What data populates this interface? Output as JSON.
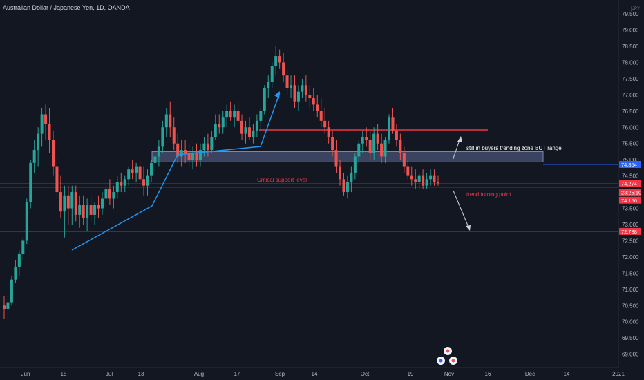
{
  "header": {
    "title": "Australian Dollar / Japanese Yen, 1D, OANDA",
    "currency": "JPY"
  },
  "colors": {
    "background": "#131722",
    "up": "#26a69a",
    "down": "#ef5350",
    "trendline": "#2196f3",
    "resistance": "#f23645",
    "zone_fill": "#5b6a96",
    "zone_price_label": "#2962ff",
    "axis_text": "#b2b5be"
  },
  "icons": [
    "tradingview-logo-icon"
  ],
  "chart_data": {
    "type": "candlestick",
    "symbol": "AUDJPY",
    "timeframe": "1D",
    "exchange": "OANDA",
    "y_axis": {
      "ylim": [
        68.8,
        79.8
      ],
      "ticks": [
        "69.000",
        "69.500",
        "70.000",
        "70.500",
        "71.000",
        "71.500",
        "72.000",
        "72.500",
        "73.000",
        "73.500",
        "74.000",
        "74.500",
        "75.000",
        "75.500",
        "76.000",
        "76.500",
        "77.000",
        "77.500",
        "78.000",
        "78.500",
        "79.000",
        "79.500"
      ]
    },
    "x_axis": {
      "ticks": [
        "Jun",
        "15",
        "Jul",
        "13",
        "Aug",
        "17",
        "Sep",
        "14",
        "Oct",
        "19",
        "Nov",
        "16",
        "Dec",
        "14",
        "2021"
      ]
    },
    "candles_ohlc": [
      [
        70.5,
        70.8,
        70.1,
        70.4
      ],
      [
        70.4,
        70.8,
        70.0,
        70.6
      ],
      [
        70.6,
        71.4,
        70.5,
        71.3
      ],
      [
        71.3,
        71.9,
        71.2,
        71.7
      ],
      [
        71.7,
        72.2,
        71.4,
        72.1
      ],
      [
        72.1,
        72.6,
        71.9,
        72.5
      ],
      [
        72.5,
        73.8,
        72.4,
        73.7
      ],
      [
        73.7,
        75.0,
        73.5,
        74.9
      ],
      [
        74.9,
        75.6,
        74.6,
        75.3
      ],
      [
        75.3,
        76.0,
        74.8,
        75.8
      ],
      [
        75.8,
        76.6,
        75.4,
        76.4
      ],
      [
        76.4,
        76.7,
        75.6,
        76.1
      ],
      [
        76.1,
        76.6,
        75.2,
        75.6
      ],
      [
        75.6,
        75.9,
        74.5,
        74.8
      ],
      [
        74.8,
        75.1,
        73.8,
        74.0
      ],
      [
        74.0,
        74.5,
        73.2,
        73.4
      ],
      [
        73.4,
        74.2,
        72.6,
        73.9
      ],
      [
        73.9,
        74.2,
        73.0,
        73.5
      ],
      [
        73.5,
        74.2,
        73.0,
        74.0
      ],
      [
        74.0,
        74.2,
        73.1,
        73.3
      ],
      [
        73.3,
        73.9,
        72.9,
        73.6
      ],
      [
        73.6,
        73.9,
        73.0,
        73.2
      ],
      [
        73.2,
        73.8,
        72.8,
        73.6
      ],
      [
        73.6,
        73.9,
        73.1,
        73.3
      ],
      [
        73.3,
        73.7,
        73.0,
        73.6
      ],
      [
        73.6,
        73.9,
        73.2,
        73.5
      ],
      [
        73.5,
        74.0,
        73.3,
        73.8
      ],
      [
        73.8,
        74.3,
        73.5,
        74.1
      ],
      [
        74.1,
        74.4,
        73.6,
        73.8
      ],
      [
        73.8,
        74.2,
        73.5,
        74.0
      ],
      [
        74.0,
        74.5,
        73.8,
        74.3
      ],
      [
        74.3,
        74.6,
        74.0,
        74.2
      ],
      [
        74.2,
        74.5,
        74.0,
        74.4
      ],
      [
        74.4,
        74.8,
        74.2,
        74.7
      ],
      [
        74.7,
        75.0,
        74.4,
        74.6
      ],
      [
        74.6,
        74.9,
        74.3,
        74.8
      ],
      [
        74.8,
        75.0,
        74.3,
        74.4
      ],
      [
        74.4,
        74.8,
        73.9,
        74.2
      ],
      [
        74.2,
        74.7,
        73.9,
        74.5
      ],
      [
        74.5,
        75.0,
        74.3,
        74.9
      ],
      [
        74.9,
        75.3,
        74.6,
        75.1
      ],
      [
        75.1,
        75.6,
        74.8,
        75.4
      ],
      [
        75.4,
        76.2,
        75.2,
        76.0
      ],
      [
        76.0,
        76.6,
        75.7,
        76.4
      ],
      [
        76.4,
        76.8,
        75.7,
        76.0
      ],
      [
        76.0,
        76.3,
        75.3,
        75.5
      ],
      [
        75.5,
        75.8,
        74.9,
        75.1
      ],
      [
        75.1,
        75.6,
        74.8,
        75.3
      ],
      [
        75.3,
        75.6,
        74.9,
        75.2
      ],
      [
        75.2,
        75.5,
        74.8,
        75.0
      ],
      [
        75.0,
        75.4,
        74.7,
        75.2
      ],
      [
        75.2,
        75.5,
        74.8,
        75.0
      ],
      [
        75.0,
        75.5,
        74.8,
        75.3
      ],
      [
        75.3,
        75.7,
        75.1,
        75.5
      ],
      [
        75.5,
        75.8,
        75.1,
        75.3
      ],
      [
        75.3,
        75.9,
        75.2,
        75.7
      ],
      [
        75.7,
        76.4,
        75.6,
        76.1
      ],
      [
        76.1,
        76.4,
        75.8,
        76.0
      ],
      [
        76.0,
        76.5,
        75.8,
        76.3
      ],
      [
        76.3,
        76.7,
        76.0,
        76.5
      ],
      [
        76.5,
        76.8,
        76.2,
        76.3
      ],
      [
        76.3,
        76.7,
        76.0,
        76.5
      ],
      [
        76.5,
        76.8,
        76.1,
        76.2
      ],
      [
        76.2,
        76.4,
        75.6,
        75.8
      ],
      [
        75.8,
        76.2,
        75.5,
        76.0
      ],
      [
        76.0,
        76.3,
        75.6,
        75.7
      ],
      [
        75.7,
        76.1,
        75.5,
        75.9
      ],
      [
        75.9,
        76.4,
        75.7,
        76.2
      ],
      [
        76.2,
        76.6,
        75.9,
        76.5
      ],
      [
        76.5,
        77.3,
        76.4,
        77.2
      ],
      [
        77.2,
        77.6,
        76.9,
        77.4
      ],
      [
        77.4,
        78.0,
        77.2,
        77.9
      ],
      [
        77.9,
        78.5,
        77.6,
        78.2
      ],
      [
        78.2,
        78.4,
        77.8,
        78.0
      ],
      [
        78.0,
        78.3,
        77.4,
        77.6
      ],
      [
        77.6,
        77.8,
        77.0,
        77.2
      ],
      [
        77.2,
        77.6,
        76.9,
        77.3
      ],
      [
        77.3,
        77.6,
        76.6,
        76.8
      ],
      [
        76.8,
        77.3,
        76.5,
        77.1
      ],
      [
        77.1,
        77.5,
        76.9,
        77.3
      ],
      [
        77.3,
        77.6,
        76.8,
        77.0
      ],
      [
        77.0,
        77.3,
        76.6,
        76.9
      ],
      [
        76.9,
        77.2,
        76.5,
        76.7
      ],
      [
        76.7,
        77.0,
        76.3,
        76.5
      ],
      [
        76.5,
        76.9,
        76.0,
        76.2
      ],
      [
        76.2,
        76.6,
        75.8,
        76.0
      ],
      [
        76.0,
        76.2,
        75.5,
        75.7
      ],
      [
        75.7,
        75.9,
        75.1,
        75.3
      ],
      [
        75.3,
        75.6,
        74.6,
        74.8
      ],
      [
        74.8,
        75.0,
        74.2,
        74.4
      ],
      [
        74.4,
        74.6,
        73.9,
        74.0
      ],
      [
        74.0,
        74.5,
        73.8,
        74.3
      ],
      [
        74.3,
        74.8,
        74.0,
        74.6
      ],
      [
        74.6,
        75.2,
        74.4,
        75.1
      ],
      [
        75.1,
        75.6,
        74.9,
        75.5
      ],
      [
        75.5,
        75.9,
        75.2,
        75.7
      ],
      [
        75.7,
        76.0,
        75.4,
        75.6
      ],
      [
        75.6,
        75.9,
        75.0,
        75.2
      ],
      [
        75.2,
        76.0,
        75.0,
        75.8
      ],
      [
        75.8,
        76.1,
        75.3,
        75.5
      ],
      [
        75.5,
        75.8,
        74.9,
        75.1
      ],
      [
        75.1,
        75.7,
        74.9,
        75.6
      ],
      [
        75.6,
        76.4,
        75.5,
        76.3
      ],
      [
        76.3,
        76.6,
        75.8,
        75.9
      ],
      [
        75.9,
        76.1,
        75.4,
        75.6
      ],
      [
        75.6,
        75.8,
        75.0,
        75.2
      ],
      [
        75.2,
        75.4,
        74.6,
        74.8
      ],
      [
        74.8,
        75.0,
        74.4,
        74.5
      ],
      [
        74.5,
        74.8,
        74.2,
        74.4
      ],
      [
        74.4,
        74.7,
        74.1,
        74.3
      ],
      [
        74.3,
        74.6,
        74.1,
        74.5
      ],
      [
        74.5,
        74.7,
        74.1,
        74.2
      ],
      [
        74.2,
        74.6,
        74.1,
        74.4
      ],
      [
        74.4,
        74.7,
        74.2,
        74.5
      ],
      [
        74.5,
        74.7,
        74.2,
        74.3
      ],
      [
        74.3,
        74.5,
        74.2,
        74.27
      ]
    ],
    "price_labels": [
      {
        "text": "74.854",
        "price": 74.854,
        "color": "#2962ff"
      },
      {
        "text": "74.274",
        "price": 74.27,
        "color": "#f23645"
      },
      {
        "text": "23:25:10",
        "price": 73.99,
        "color": "#f23645"
      },
      {
        "text": "74.156",
        "price": 73.75,
        "color": "#f23645"
      },
      {
        "text": "72.788",
        "price": 72.788,
        "color": "#f23645"
      }
    ],
    "horizontal_lines": [
      {
        "price": 75.92,
        "color": "#f23645"
      },
      {
        "price": 74.156,
        "color": "#f23645"
      },
      {
        "price": 72.788,
        "color": "#f23645"
      },
      {
        "price": 74.854,
        "color": "#2962ff"
      }
    ],
    "zone": {
      "top": 75.25,
      "bottom": 74.93
    },
    "annotations": [
      {
        "text": "still in buyers trending zone BUT range",
        "color": "#ffffff"
      },
      {
        "text": "Critical support level",
        "color": "#f23645"
      },
      {
        "text": "trend turning point",
        "color": "#f23645"
      }
    ]
  }
}
